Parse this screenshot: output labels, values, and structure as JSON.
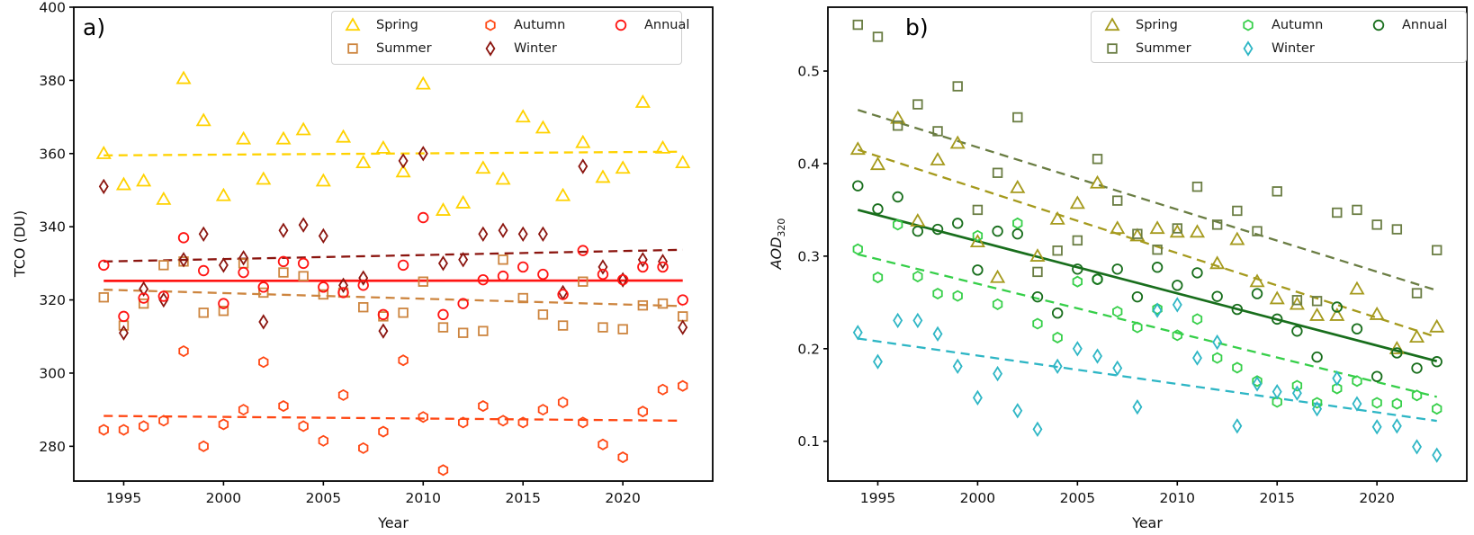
{
  "figure": {
    "panel_letters": [
      "a)",
      "b)"
    ]
  },
  "chart_data": [
    {
      "panel": "a",
      "type": "scatter",
      "xlabel": "Year",
      "ylabel": "TCO (DU)",
      "xlim": [
        1992.5,
        2024.5
      ],
      "ylim": [
        270.5,
        400
      ],
      "xticks": [
        1995,
        2000,
        2005,
        2010,
        2015,
        2020
      ],
      "yticks": [
        280,
        300,
        320,
        340,
        360,
        380,
        400
      ],
      "years": [
        1994,
        1995,
        1996,
        1997,
        1998,
        1999,
        2000,
        2001,
        2002,
        2003,
        2004,
        2005,
        2006,
        2007,
        2008,
        2009,
        2010,
        2011,
        2012,
        2013,
        2014,
        2015,
        2016,
        2017,
        2018,
        2019,
        2020,
        2021,
        2022,
        2023
      ],
      "series": [
        {
          "name": "Spring",
          "marker": "triangle",
          "color": "#ffd200",
          "values": [
            360,
            351.5,
            352.5,
            347.5,
            380.5,
            369,
            348.5,
            364,
            353,
            364,
            366.5,
            352.5,
            364.5,
            357.5,
            361.5,
            355,
            379,
            344.5,
            346.5,
            356,
            353,
            370,
            367,
            348.5,
            363,
            353.5,
            356,
            374,
            361.5,
            357.5
          ],
          "trend": {
            "style": "dashed",
            "x": [
              1994,
              2023
            ],
            "y": [
              359.5,
              360.5
            ]
          }
        },
        {
          "name": "Summer",
          "marker": "square",
          "color": "#cd853f",
          "values": [
            320.7,
            313,
            319,
            329.5,
            330.5,
            316.5,
            317,
            330,
            322,
            327.5,
            326.5,
            321.5,
            322,
            318,
            315.5,
            316.5,
            325,
            312.5,
            311,
            311.5,
            331,
            320.5,
            316,
            313,
            325,
            312.5,
            312,
            318.5,
            319,
            315.5
          ],
          "trend": {
            "style": "dashed",
            "x": [
              1994,
              2023
            ],
            "y": [
              322.8,
              318.3
            ]
          }
        },
        {
          "name": "Autumn",
          "marker": "hexagon",
          "color": "#ff4713",
          "values": [
            284.5,
            284.5,
            285.5,
            287,
            306,
            280,
            286,
            290,
            303,
            291,
            285.5,
            281.5,
            294,
            279.5,
            284,
            303.5,
            288,
            273.5,
            286.5,
            291,
            287,
            286.5,
            290,
            292,
            286.5,
            280.5,
            277,
            289.5,
            295.5,
            296.5
          ],
          "trend": {
            "style": "dashed",
            "x": [
              1994,
              2023
            ],
            "y": [
              288.3,
              287
            ]
          }
        },
        {
          "name": "Winter",
          "marker": "diamond",
          "color": "#8b150f",
          "values": [
            351,
            311,
            323,
            320,
            331,
            338,
            329.5,
            331.5,
            314,
            339,
            340.5,
            337.5,
            324,
            326,
            311.5,
            358,
            360,
            330,
            331,
            338,
            339,
            338,
            338,
            322,
            356.5,
            329,
            325.5,
            331,
            330.5,
            312.5
          ],
          "trend": {
            "style": "dashed",
            "x": [
              1994,
              2023
            ],
            "y": [
              330.5,
              333.7
            ]
          }
        },
        {
          "name": "Annual",
          "marker": "circle",
          "color": "#ff1412",
          "values": [
            329.5,
            315.5,
            320.5,
            321,
            337,
            328,
            319,
            327.5,
            323.5,
            330.5,
            330,
            323.5,
            322,
            324,
            316,
            329.5,
            342.5,
            316,
            319,
            325.5,
            326.5,
            329,
            327,
            321.5,
            333.5,
            327,
            325.5,
            329,
            329,
            320
          ],
          "trend": {
            "style": "solid",
            "x": [
              1994,
              2023
            ],
            "y": [
              325.2,
              325.3
            ]
          }
        }
      ]
    },
    {
      "panel": "b",
      "type": "scatter",
      "xlabel": "Year",
      "ylabel_main": "AOD",
      "ylabel_sub": "320",
      "xlim": [
        1992.5,
        2024.5
      ],
      "ylim": [
        0.057,
        0.569
      ],
      "xticks": [
        1995,
        2000,
        2005,
        2010,
        2015,
        2020
      ],
      "yticks": [
        0.1,
        0.2,
        0.3,
        0.4,
        0.5
      ],
      "years": [
        1994,
        1995,
        1996,
        1997,
        1998,
        1999,
        2000,
        2001,
        2002,
        2003,
        2004,
        2005,
        2006,
        2007,
        2008,
        2009,
        2010,
        2011,
        2012,
        2013,
        2014,
        2015,
        2016,
        2017,
        2018,
        2019,
        2020,
        2021,
        2022,
        2023
      ],
      "series": [
        {
          "name": "Spring",
          "marker": "triangle",
          "color": "#a59a1d",
          "values": [
            0.4155,
            0.399,
            0.449,
            0.338,
            0.404,
            0.422,
            0.3155,
            0.277,
            0.374,
            0.3,
            0.34,
            0.357,
            0.379,
            0.33,
            0.322,
            0.33,
            0.326,
            0.326,
            0.292,
            0.318,
            0.2725,
            0.254,
            0.248,
            0.236,
            0.236,
            0.2645,
            0.237,
            0.2,
            0.2125,
            0.2235
          ],
          "trend": {
            "style": "dashed",
            "x": [
              1994,
              2023
            ],
            "y": [
              0.415,
              0.2125
            ]
          }
        },
        {
          "name": "Summer",
          "marker": "square",
          "color": "#6a7d43",
          "values": [
            0.55,
            0.537,
            0.441,
            0.464,
            0.435,
            0.4835,
            0.35,
            0.39,
            0.45,
            0.283,
            0.306,
            0.317,
            0.405,
            0.36,
            0.324,
            0.307,
            0.33,
            0.375,
            0.334,
            0.349,
            0.327,
            0.37,
            0.2525,
            0.2515,
            0.347,
            0.35,
            0.334,
            0.329,
            0.26,
            0.3065
          ],
          "trend": {
            "style": "dashed",
            "x": [
              1994,
              2023
            ],
            "y": [
              0.458,
              0.263
            ]
          }
        },
        {
          "name": "Autumn",
          "marker": "hexagon",
          "color": "#36cf49",
          "values": [
            0.3075,
            0.277,
            0.334,
            0.278,
            0.2595,
            0.257,
            0.322,
            0.248,
            0.3355,
            0.227,
            0.212,
            0.2725,
            0.275,
            0.24,
            0.223,
            0.243,
            0.2145,
            0.232,
            0.19,
            0.1795,
            0.165,
            0.1425,
            0.16,
            0.1415,
            0.157,
            0.165,
            0.1415,
            0.1405,
            0.1495,
            0.135
          ],
          "trend": {
            "style": "dashed",
            "x": [
              1994,
              2023
            ],
            "y": [
              0.302,
              0.148
            ]
          }
        },
        {
          "name": "Winter",
          "marker": "diamond",
          "color": "#2eb6c5",
          "values": [
            0.2175,
            0.186,
            0.2305,
            0.2305,
            0.216,
            0.181,
            0.147,
            0.173,
            0.133,
            0.113,
            0.181,
            0.2,
            0.192,
            0.179,
            0.137,
            0.2415,
            0.2475,
            0.19,
            0.207,
            0.1165,
            0.162,
            0.1535,
            0.152,
            0.135,
            0.168,
            0.1405,
            0.1155,
            0.1165,
            0.094,
            0.085
          ],
          "trend": {
            "style": "dashed",
            "x": [
              1994,
              2023
            ],
            "y": [
              0.211,
              0.122
            ]
          }
        },
        {
          "name": "Annual",
          "marker": "circle",
          "color": "#186e1c",
          "values": [
            0.376,
            0.351,
            0.364,
            0.327,
            0.329,
            0.3355,
            0.285,
            0.327,
            0.324,
            0.256,
            0.2385,
            0.286,
            0.275,
            0.286,
            0.256,
            0.288,
            0.2685,
            0.282,
            0.2565,
            0.2425,
            0.2595,
            0.232,
            0.219,
            0.191,
            0.245,
            0.2215,
            0.17,
            0.1955,
            0.179,
            0.186
          ],
          "trend": {
            "style": "solid",
            "x": [
              1994,
              2023
            ],
            "y": [
              0.35,
              0.1865
            ]
          }
        }
      ]
    }
  ]
}
